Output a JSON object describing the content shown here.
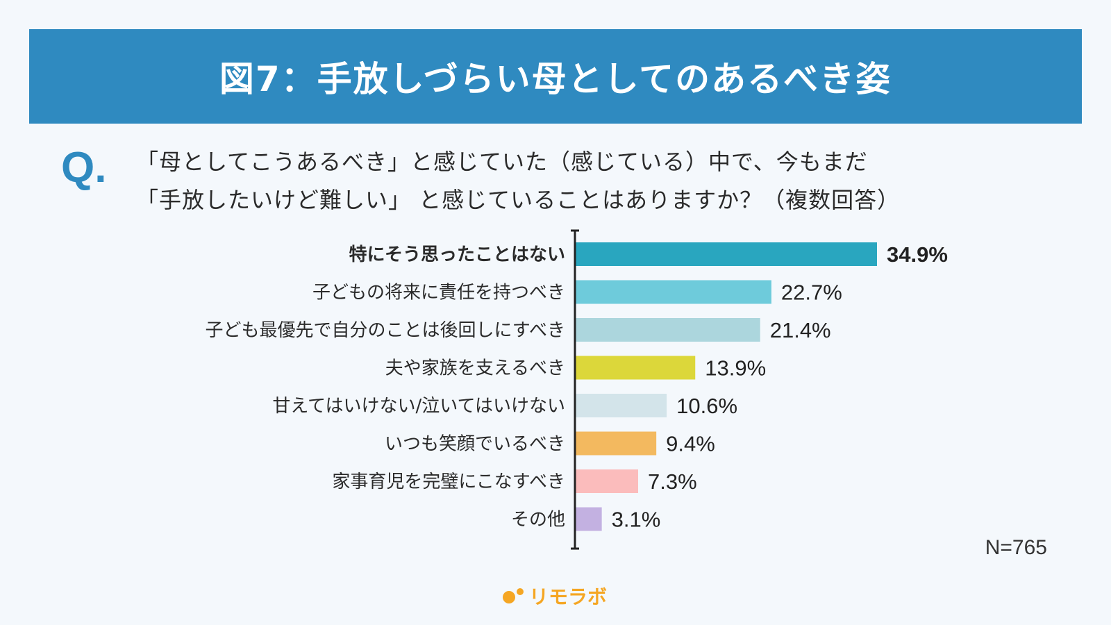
{
  "header": {
    "title": "図7：手放しづらい母としてのあるべき姿"
  },
  "question": {
    "mark": "Q.",
    "line1": "「母としてこうあるべき」と感じていた（感じている）中で、今もまだ",
    "line2": "「手放したいけど難しい」 と感じていることはありますか？（複数回答）"
  },
  "chart_data": {
    "type": "bar",
    "orientation": "horizontal",
    "categories": [
      "特にそう思ったことはない",
      "子どもの将来に責任を持つべき",
      "子ども最優先で自分のことは後回しにすべき",
      "夫や家族を支えるべき",
      "甘えてはいけない/泣いてはいけない",
      "いつも笑顔でいるべき",
      "家事育児を完璧にこなすべき",
      "その他"
    ],
    "values": [
      34.9,
      22.7,
      21.4,
      13.9,
      10.6,
      9.4,
      7.3,
      3.1
    ],
    "value_labels": [
      "34.9%",
      "22.7%",
      "21.4%",
      "13.9%",
      "10.6%",
      "9.4%",
      "7.3%",
      "3.1%"
    ],
    "colors": [
      "#29a6bf",
      "#6ecbdb",
      "#acd6dd",
      "#dcd73a",
      "#d3e4ea",
      "#f3b95f",
      "#fbbcbc",
      "#c3b1e1"
    ],
    "highlight_index": 0,
    "xlim": [
      0,
      36
    ],
    "grid": false,
    "note": "N=765"
  },
  "brand": {
    "name": "リモラボ",
    "color": "#f5a623"
  }
}
